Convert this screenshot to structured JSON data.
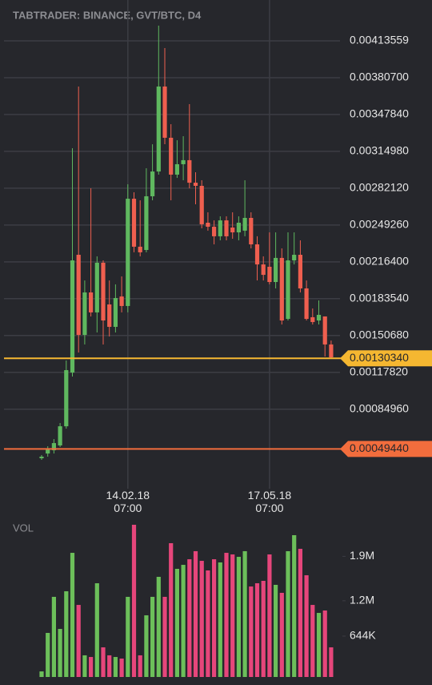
{
  "chart_data": [
    {
      "type": "candlestick",
      "title": "TABTRADER: BINANCE, GVT/BTC, D4",
      "categories": [
        null,
        null,
        null,
        null,
        null,
        null,
        null,
        null,
        null,
        null,
        null,
        null,
        null,
        null,
        "14.02.18\n07:00",
        null,
        null,
        null,
        null,
        null,
        null,
        null,
        null,
        null,
        null,
        null,
        null,
        null,
        null,
        null,
        null,
        null,
        null,
        null,
        null,
        null,
        null,
        "17.05.18\n07:00",
        null,
        null,
        null,
        null,
        null,
        null,
        null,
        null,
        null,
        null
      ],
      "open": [
        0.000412,
        0.000454,
        0.000483,
        0.000526,
        0.000697,
        0.001176,
        0.002227,
        0.001512,
        0.001891,
        0.001713,
        0.002156,
        0.001784,
        0.001584,
        0.001855,
        0.00177,
        0.002727,
        0.002299,
        0.00227,
        0.002749,
        0.00297,
        0.003728,
        0.003271,
        0.002942,
        0.003035,
        0.003071,
        0.00287,
        0.002842,
        0.002513,
        0.002477,
        0.002392,
        0.002534,
        0.00247,
        0.002427,
        0.002442,
        0.002556,
        0.00232,
        0.002141,
        0.00212,
        0.001984,
        0.002199,
        0.001655,
        0.002177,
        0.002227,
        0.001927,
        0.00167,
        0.001641,
        0.001677,
        0.001427
      ],
      "high": [
        0.00044,
        0.000519,
        0.000583,
        0.000726,
        0.001284,
        0.003178,
        0.003728,
        0.001998,
        0.00282,
        0.002213,
        0.002177,
        0.001998,
        0.001963,
        0.002034,
        0.002856,
        0.002785,
        0.002713,
        0.002999,
        0.003213,
        0.004271,
        0.004071,
        0.003392,
        0.003249,
        0.003285,
        0.003571,
        0.002963,
        0.002892,
        0.002606,
        0.002534,
        0.00257,
        0.00257,
        0.002606,
        0.00257,
        0.002892,
        0.002606,
        0.002392,
        0.002213,
        0.002427,
        0.002427,
        0.002284,
        0.002427,
        0.002427,
        0.002356,
        0.001998,
        0.001748,
        0.00182,
        0.001677,
        0.001462
      ],
      "low": [
        0.000397,
        0.000426,
        0.000454,
        0.000512,
        0.000676,
        0.001141,
        0.001355,
        0.001427,
        0.001677,
        0.001534,
        0.001427,
        0.001498,
        0.001534,
        0.001713,
        0.001713,
        0.002249,
        0.002213,
        0.002249,
        0.002713,
        0.002942,
        0.003213,
        0.002713,
        0.002913,
        0.002892,
        0.00282,
        0.002677,
        0.002463,
        0.002442,
        0.00232,
        0.002356,
        0.002356,
        0.00237,
        0.002356,
        0.002392,
        0.002284,
        0.001998,
        0.001998,
        0.001963,
        0.001927,
        0.001605,
        0.001641,
        0.002141,
        0.001891,
        0.001641,
        0.001605,
        0.001605,
        0.001319,
        0.001298
      ],
      "close": [
        0.000426,
        0.00049,
        0.000547,
        0.000697,
        0.001198,
        0.002177,
        0.001512,
        0.001891,
        0.001713,
        0.002156,
        0.001641,
        0.001584,
        0.001841,
        0.00177,
        0.002727,
        0.002299,
        0.002249,
        0.002749,
        0.00297,
        0.003728,
        0.003271,
        0.002942,
        0.003035,
        0.003071,
        0.00287,
        0.002842,
        0.002499,
        0.002477,
        0.002392,
        0.002534,
        0.002392,
        0.002427,
        0.002513,
        0.002556,
        0.00232,
        0.002141,
        0.002048,
        0.001984,
        0.002199,
        0.001641,
        0.002177,
        0.002227,
        0.001927,
        0.001655,
        0.001627,
        0.001691,
        0.001427,
        0.001312
      ],
      "up_color": "#5fb85f",
      "down_color": "#ef5f4f",
      "ylim": [
        0.00014,
        0.0045
      ],
      "yticks": [
        0.00413559,
        {
          "value": 0.003807,
          "label": "0.00380700"
        },
        {
          "value": 0.0034784,
          "label": "0.00347840"
        },
        {
          "value": 0.0031498,
          "label": "0.00314980"
        },
        {
          "value": 0.0028212,
          "label": "0.00282120"
        },
        {
          "value": 0.0024926,
          "label": "0.00249260"
        },
        {
          "value": 0.002164,
          "label": "0.00216400"
        },
        {
          "value": 0.0018354,
          "label": "0.00183540"
        },
        {
          "value": 0.0015068,
          "label": "0.00150680"
        },
        {
          "value": 0.0011782,
          "label": "0.00117820"
        },
        {
          "value": 0.0008496,
          "label": "0.00084960"
        }
      ],
      "price_lines": [
        {
          "value": 0.0013034,
          "label": "0.00130340",
          "color": "#f5b731"
        },
        {
          "value": 0.0004944,
          "label": "0.00049440",
          "color": "#f26d3d"
        }
      ],
      "grid": true
    },
    {
      "type": "bar",
      "title": "VOL",
      "values": [
        88000,
        694000,
        1262000,
        757000,
        1350000,
        1955000,
        1135000,
        341000,
        315000,
        1476000,
        467000,
        341000,
        315000,
        290000,
        1262000,
        2397000,
        341000,
        971000,
        1262000,
        1577000,
        1262000,
        2107000,
        1703000,
        1766000,
        1854000,
        1981000,
        1829000,
        1678000,
        1854000,
        1804000,
        1955000,
        1930000,
        1892000,
        1981000,
        1425000,
        1476000,
        1514000,
        1930000,
        1451000,
        1325000,
        1981000,
        2233000,
        2018000,
        1602000,
        1135000,
        1009000,
        1047000,
        467000
      ],
      "up_color": "#6cbf5a",
      "down_color": "#e6467b",
      "ylim": [
        0,
        2460000
      ],
      "yticks": [
        {
          "value": 1900000,
          "label": "1.9M"
        },
        {
          "value": 1200000,
          "label": "1.2M"
        },
        {
          "value": 644000,
          "label": "644K"
        }
      ]
    }
  ]
}
